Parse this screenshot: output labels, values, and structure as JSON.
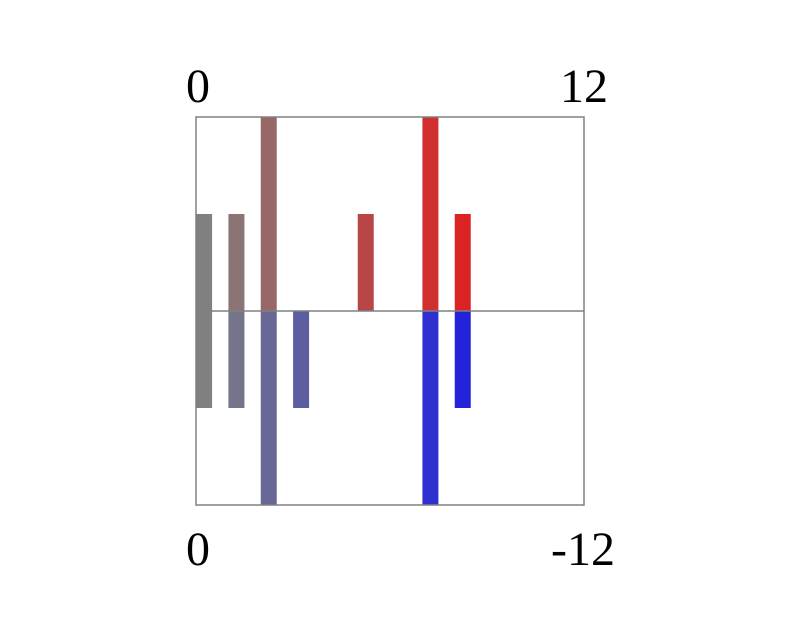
{
  "chart_data": {
    "type": "bar",
    "title": "",
    "xlabel": "",
    "ylabel": "",
    "grid": false,
    "x_range": [
      0,
      12
    ],
    "top_axis_labels": {
      "left": "0",
      "right": "12"
    },
    "bottom_axis_labels": {
      "left": "0",
      "right": "-12"
    },
    "y_range": [
      -1,
      1
    ],
    "series": [
      {
        "values": [
          {
            "x": 0.25,
            "top": 0.5,
            "bottom": -0.5,
            "top_color": "#808080",
            "bottom_color": "#808080"
          },
          {
            "x": 1.25,
            "top": 0.5,
            "bottom": -0.5,
            "top_color": "#8b7474",
            "bottom_color": "#74748b"
          },
          {
            "x": 2.25,
            "top": 1.0,
            "bottom": -1.0,
            "top_color": "#976868",
            "bottom_color": "#686897"
          },
          {
            "x": 3.25,
            "top": 0.0,
            "bottom": -0.5,
            "top_color": "#a25d5d",
            "bottom_color": "#5d5da2"
          },
          {
            "x": 5.25,
            "top": 0.5,
            "bottom": 0.0,
            "top_color": "#b94646",
            "bottom_color": "#4646b9"
          },
          {
            "x": 7.25,
            "top": 1.0,
            "bottom": -1.0,
            "top_color": "#d02f2f",
            "bottom_color": "#2f2fd0"
          },
          {
            "x": 8.25,
            "top": 0.5,
            "bottom": -0.5,
            "top_color": "#dc2323",
            "bottom_color": "#2323dc"
          }
        ]
      }
    ],
    "frame_color": "#808080"
  }
}
